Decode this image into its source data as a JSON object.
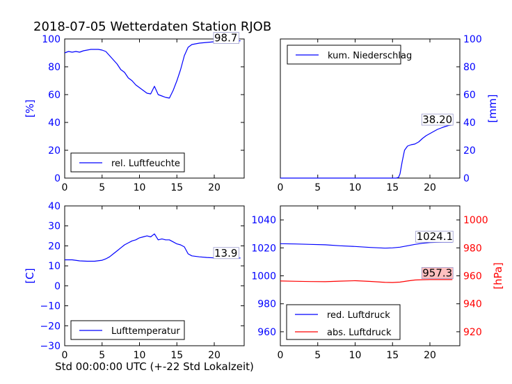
{
  "title": "2018-07-05 Wetterdaten Station RJOB",
  "xlabel": "Std 00:00:00 UTC (+-22 Std Lokalzeit)",
  "colors": {
    "blue": "#0000ff",
    "red": "#ff0000",
    "black": "#000000",
    "badge_red": "#ffc0c0",
    "badge_white": "#ffffff"
  },
  "chart_data": [
    {
      "type": "line",
      "panel": "top-left",
      "ylabel": "[%]",
      "xlim": [
        0,
        24
      ],
      "ylim": [
        0,
        100
      ],
      "xticks": [
        0,
        5,
        10,
        15,
        20
      ],
      "yticks": [
        0,
        20,
        40,
        60,
        80,
        100
      ],
      "legend": {
        "placement": "lower-left",
        "entries": [
          "rel. Luftfeuchte"
        ]
      },
      "annotations": [
        {
          "text": "98.7",
          "x": 20,
          "y": 98.7
        }
      ],
      "series": [
        {
          "name": "rel. Luftfeuchte",
          "color": "#0000ff",
          "x": [
            0,
            0.5,
            1,
            1.5,
            2,
            2.5,
            3,
            3.5,
            4,
            4.5,
            5,
            5.5,
            6,
            6.5,
            7,
            7.5,
            8,
            8.5,
            9,
            9.5,
            10,
            10.5,
            11,
            11.5,
            12,
            12.5,
            13,
            13.5,
            14,
            14.5,
            15,
            15.5,
            16,
            16.5,
            17,
            18,
            19,
            20,
            21,
            22,
            23,
            23.5
          ],
          "y": [
            90,
            91,
            90.5,
            91,
            90.5,
            91.5,
            92,
            92.5,
            92.5,
            92.5,
            92,
            91,
            88,
            85,
            82,
            78,
            76,
            72,
            70,
            67,
            65,
            63,
            61,
            60.5,
            66,
            60,
            59,
            58,
            57.5,
            63,
            70,
            78,
            88,
            94,
            96,
            97,
            97.5,
            98,
            98.3,
            98.5,
            98.6,
            98.7
          ]
        }
      ]
    },
    {
      "type": "line",
      "panel": "top-right",
      "ylabel": "[mm]",
      "xlim": [
        0,
        24
      ],
      "ylim": [
        0,
        100
      ],
      "xticks": [
        0,
        5,
        10,
        15,
        20
      ],
      "yticks": [
        0,
        20,
        40,
        60,
        80,
        100
      ],
      "legend": {
        "placement": "upper-left",
        "entries": [
          "kum. Niederschlag"
        ]
      },
      "annotations": [
        {
          "text": "38.20",
          "x": 19,
          "y": 40
        }
      ],
      "series": [
        {
          "name": "kum. Niederschlag",
          "color": "#0000ff",
          "x": [
            0,
            15.5,
            15.8,
            16,
            16.3,
            16.6,
            17,
            17.5,
            18,
            18.5,
            19,
            19.5,
            20,
            20.5,
            21,
            21.5,
            22,
            22.5,
            23
          ],
          "y": [
            0,
            0,
            0.5,
            3,
            12,
            20,
            23,
            24,
            24.5,
            26,
            28.5,
            30.5,
            32,
            33.5,
            35,
            36,
            37,
            37.8,
            38.2
          ]
        }
      ]
    },
    {
      "type": "line",
      "panel": "bottom-left",
      "ylabel": "[C]",
      "xlim": [
        0,
        24
      ],
      "ylim": [
        -30,
        40
      ],
      "xticks": [
        0,
        5,
        10,
        15,
        20
      ],
      "yticks": [
        -30,
        -20,
        -10,
        0,
        10,
        20,
        30,
        40
      ],
      "legend": {
        "placement": "lower-left",
        "entries": [
          "Lufttemperatur"
        ]
      },
      "annotations": [
        {
          "text": "13.9",
          "x": 20,
          "y": 15
        }
      ],
      "series": [
        {
          "name": "Lufttemperatur",
          "color": "#0000ff",
          "x": [
            0,
            1,
            2,
            3,
            4,
            5,
            5.5,
            6,
            6.5,
            7,
            7.5,
            8,
            8.5,
            9,
            9.5,
            10,
            10.5,
            11,
            11.5,
            12,
            12.5,
            13,
            13.5,
            14,
            14.5,
            15,
            15.5,
            16,
            16.5,
            17,
            18,
            19,
            20,
            21,
            22,
            23,
            23.5
          ],
          "y": [
            13,
            13,
            12.5,
            12.3,
            12.3,
            12.8,
            13.5,
            14.5,
            16,
            17.5,
            19,
            20.5,
            21.5,
            22.5,
            23,
            24,
            24.5,
            25,
            24.5,
            26,
            23,
            23.5,
            23,
            23,
            22,
            21,
            20.5,
            19.5,
            16,
            15,
            14.5,
            14.2,
            14,
            14,
            13.9,
            13.9,
            13.9
          ]
        }
      ]
    },
    {
      "type": "line",
      "panel": "bottom-right",
      "ylabel": "[hPa]",
      "xlim": [
        0,
        24
      ],
      "ylim_left": [
        950,
        1050
      ],
      "ylim_right": [
        910,
        1010
      ],
      "xticks": [
        0,
        5,
        10,
        15,
        20
      ],
      "yticks_left": [
        960,
        980,
        1000,
        1020,
        1040
      ],
      "yticks_right": [
        920,
        940,
        960,
        980,
        1000
      ],
      "legend": {
        "placement": "lower-left",
        "entries": [
          "red. Luftdruck",
          "abs. Luftdruck"
        ]
      },
      "annotations": [
        {
          "text": "1024.1",
          "x": 18.2,
          "y": 1026,
          "axis": "left"
        },
        {
          "text": "957.3",
          "x": 19,
          "y": 960,
          "axis": "right"
        }
      ],
      "series": [
        {
          "name": "red. Luftdruck",
          "color": "#0000ff",
          "axis": "left",
          "x": [
            0,
            2,
            4,
            6,
            8,
            10,
            12,
            14,
            15,
            16,
            17,
            18,
            19,
            20,
            21,
            22,
            23
          ],
          "y": [
            1023,
            1022.8,
            1022.5,
            1022.2,
            1021.5,
            1021,
            1020.3,
            1019.8,
            1020,
            1020.5,
            1021.5,
            1022.5,
            1023.3,
            1023.8,
            1024,
            1024.1,
            1024.1
          ]
        },
        {
          "name": "abs. Luftdruck",
          "color": "#ff0000",
          "axis": "right",
          "x": [
            0,
            2,
            4,
            6,
            8,
            10,
            12,
            14,
            15,
            16,
            17,
            18,
            19,
            20,
            21,
            22,
            23
          ],
          "y": [
            956.3,
            956.1,
            955.9,
            955.8,
            956.2,
            956.5,
            956,
            955.3,
            955.2,
            955.5,
            956.3,
            957,
            957.2,
            957.3,
            957.3,
            957.3,
            957.3
          ]
        }
      ]
    }
  ]
}
